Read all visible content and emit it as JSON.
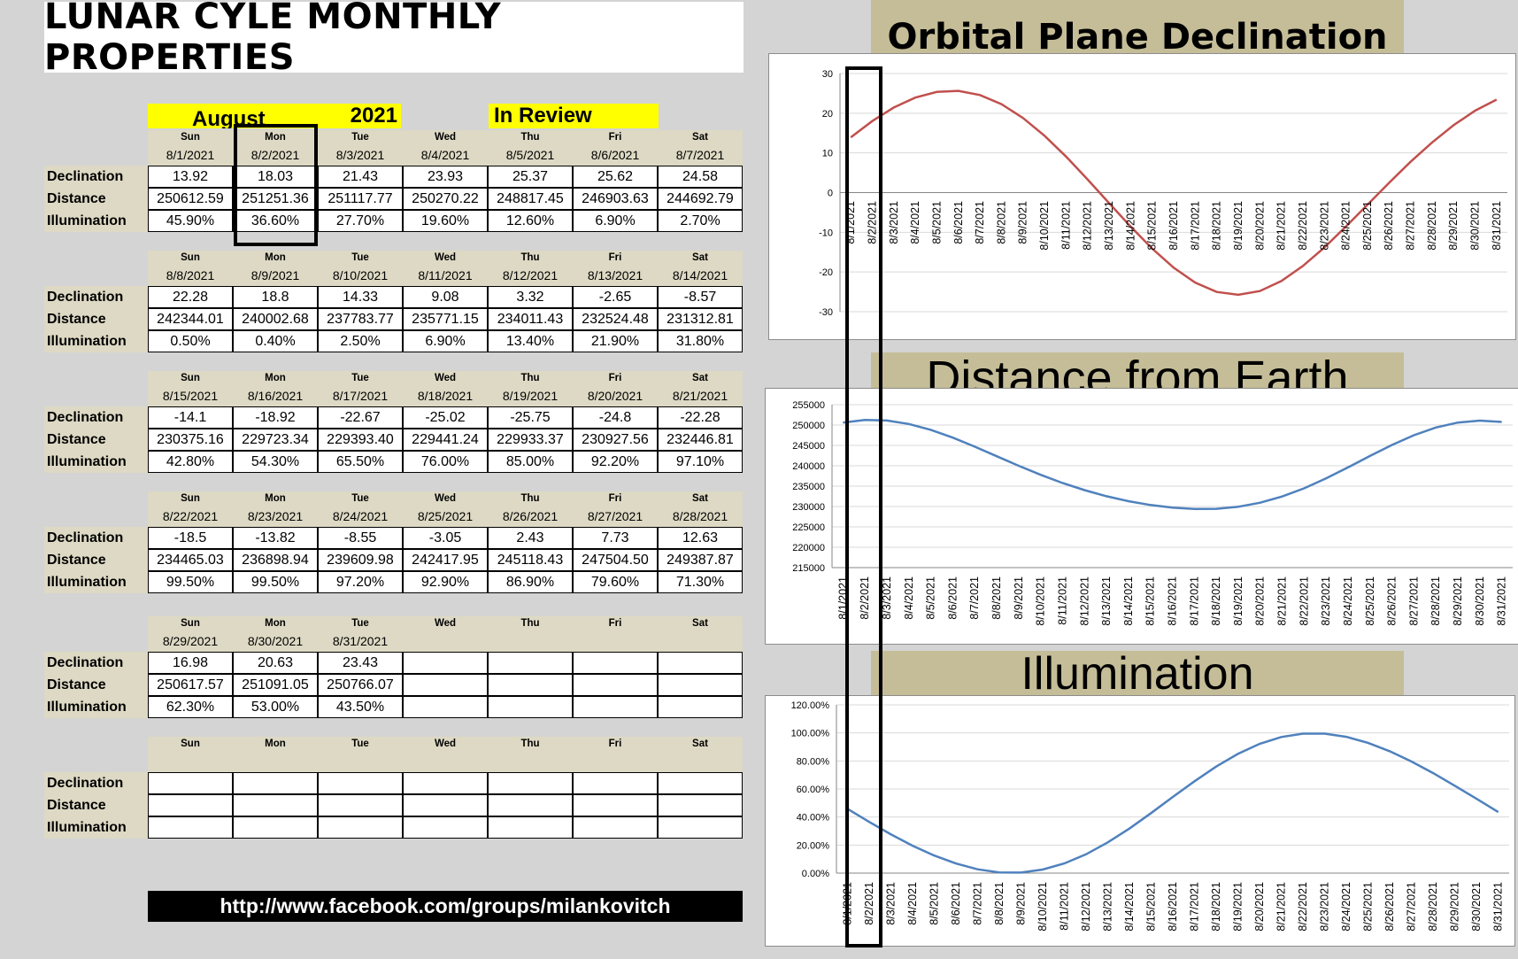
{
  "title": "LUNAR CYLE MONTHLY PROPERTIES",
  "header": {
    "month": "August",
    "year": "2021",
    "review": "In Review"
  },
  "row_labels": [
    "Declination",
    "Distance",
    "Illumination"
  ],
  "weeks": [
    {
      "days": [
        "Sun",
        "Mon",
        "Tue",
        "Wed",
        "Thu",
        "Fri",
        "Sat"
      ],
      "dates": [
        "8/1/2021",
        "8/2/2021",
        "8/3/2021",
        "8/4/2021",
        "8/5/2021",
        "8/6/2021",
        "8/7/2021"
      ],
      "declination": [
        "13.92",
        "18.03",
        "21.43",
        "23.93",
        "25.37",
        "25.62",
        "24.58"
      ],
      "distance": [
        "250612.59",
        "251251.36",
        "251117.77",
        "250270.22",
        "248817.45",
        "246903.63",
        "244692.79"
      ],
      "illumination": [
        "45.90%",
        "36.60%",
        "27.70%",
        "19.60%",
        "12.60%",
        "6.90%",
        "2.70%"
      ]
    },
    {
      "days": [
        "Sun",
        "Mon",
        "Tue",
        "Wed",
        "Thu",
        "Fri",
        "Sat"
      ],
      "dates": [
        "8/8/2021",
        "8/9/2021",
        "8/10/2021",
        "8/11/2021",
        "8/12/2021",
        "8/13/2021",
        "8/14/2021"
      ],
      "declination": [
        "22.28",
        "18.8",
        "14.33",
        "9.08",
        "3.32",
        "-2.65",
        "-8.57"
      ],
      "distance": [
        "242344.01",
        "240002.68",
        "237783.77",
        "235771.15",
        "234011.43",
        "232524.48",
        "231312.81"
      ],
      "illumination": [
        "0.50%",
        "0.40%",
        "2.50%",
        "6.90%",
        "13.40%",
        "21.90%",
        "31.80%"
      ]
    },
    {
      "days": [
        "Sun",
        "Mon",
        "Tue",
        "Wed",
        "Thu",
        "Fri",
        "Sat"
      ],
      "dates": [
        "8/15/2021",
        "8/16/2021",
        "8/17/2021",
        "8/18/2021",
        "8/19/2021",
        "8/20/2021",
        "8/21/2021"
      ],
      "declination": [
        "-14.1",
        "-18.92",
        "-22.67",
        "-25.02",
        "-25.75",
        "-24.8",
        "-22.28"
      ],
      "distance": [
        "230375.16",
        "229723.34",
        "229393.40",
        "229441.24",
        "229933.37",
        "230927.56",
        "232446.81"
      ],
      "illumination": [
        "42.80%",
        "54.30%",
        "65.50%",
        "76.00%",
        "85.00%",
        "92.20%",
        "97.10%"
      ]
    },
    {
      "days": [
        "Sun",
        "Mon",
        "Tue",
        "Wed",
        "Thu",
        "Fri",
        "Sat"
      ],
      "dates": [
        "8/22/2021",
        "8/23/2021",
        "8/24/2021",
        "8/25/2021",
        "8/26/2021",
        "8/27/2021",
        "8/28/2021"
      ],
      "declination": [
        "-18.5",
        "-13.82",
        "-8.55",
        "-3.05",
        "2.43",
        "7.73",
        "12.63"
      ],
      "distance": [
        "234465.03",
        "236898.94",
        "239609.98",
        "242417.95",
        "245118.43",
        "247504.50",
        "249387.87"
      ],
      "illumination": [
        "99.50%",
        "99.50%",
        "97.20%",
        "92.90%",
        "86.90%",
        "79.60%",
        "71.30%"
      ]
    },
    {
      "days": [
        "Sun",
        "Mon",
        "Tue",
        "Wed",
        "Thu",
        "Fri",
        "Sat"
      ],
      "dates": [
        "8/29/2021",
        "8/30/2021",
        "8/31/2021",
        "",
        "",
        "",
        ""
      ],
      "declination": [
        "16.98",
        "20.63",
        "23.43",
        "",
        "",
        "",
        ""
      ],
      "distance": [
        "250617.57",
        "251091.05",
        "250766.07",
        "",
        "",
        "",
        ""
      ],
      "illumination": [
        "62.30%",
        "53.00%",
        "43.50%",
        "",
        "",
        "",
        ""
      ]
    },
    {
      "days": [
        "Sun",
        "Mon",
        "Tue",
        "Wed",
        "Thu",
        "Fri",
        "Sat"
      ],
      "dates": [
        "",
        "",
        "",
        "",
        "",
        "",
        ""
      ],
      "declination": [
        "",
        "",
        "",
        "",
        "",
        "",
        ""
      ],
      "distance": [
        "",
        "",
        "",
        "",
        "",
        "",
        ""
      ],
      "illumination": [
        "",
        "",
        "",
        "",
        "",
        "",
        ""
      ]
    }
  ],
  "footer_url": "http://www.facebook.com/groups/milankovitch",
  "chart_data": [
    {
      "type": "line",
      "title": "Orbital Plane Declination",
      "color": "#c0504d",
      "x": [
        "8/1/2021",
        "8/2/2021",
        "8/3/2021",
        "8/4/2021",
        "8/5/2021",
        "8/6/2021",
        "8/7/2021",
        "8/8/2021",
        "8/9/2021",
        "8/10/2021",
        "8/11/2021",
        "8/12/2021",
        "8/13/2021",
        "8/14/2021",
        "8/15/2021",
        "8/16/2021",
        "8/17/2021",
        "8/18/2021",
        "8/19/2021",
        "8/20/2021",
        "8/21/2021",
        "8/22/2021",
        "8/23/2021",
        "8/24/2021",
        "8/25/2021",
        "8/26/2021",
        "8/27/2021",
        "8/28/2021",
        "8/29/2021",
        "8/30/2021",
        "8/31/2021"
      ],
      "y": [
        13.92,
        18.03,
        21.43,
        23.93,
        25.37,
        25.62,
        24.58,
        22.28,
        18.8,
        14.33,
        9.08,
        3.32,
        -2.65,
        -8.57,
        -14.1,
        -18.92,
        -22.67,
        -25.02,
        -25.75,
        -24.8,
        -22.28,
        -18.5,
        -13.82,
        -8.55,
        -3.05,
        2.43,
        7.73,
        12.63,
        16.98,
        20.63,
        23.43
      ],
      "ylim": [
        -30,
        30
      ],
      "yticks": [
        "30",
        "20",
        "10",
        "0",
        "-10",
        "-20",
        "-30"
      ],
      "grid": true
    },
    {
      "type": "line",
      "title": "Distance from Earth",
      "color": "#4f81bd",
      "x": [
        "8/1/2021",
        "8/2/2021",
        "8/3/2021",
        "8/4/2021",
        "8/5/2021",
        "8/6/2021",
        "8/7/2021",
        "8/8/2021",
        "8/9/2021",
        "8/10/2021",
        "8/11/2021",
        "8/12/2021",
        "8/13/2021",
        "8/14/2021",
        "8/15/2021",
        "8/16/2021",
        "8/17/2021",
        "8/18/2021",
        "8/19/2021",
        "8/20/2021",
        "8/21/2021",
        "8/22/2021",
        "8/23/2021",
        "8/24/2021",
        "8/25/2021",
        "8/26/2021",
        "8/27/2021",
        "8/28/2021",
        "8/29/2021",
        "8/30/2021",
        "8/31/2021"
      ],
      "y": [
        250612.59,
        251251.36,
        251117.77,
        250270.22,
        248817.45,
        246903.63,
        244692.79,
        242344.01,
        240002.68,
        237783.77,
        235771.15,
        234011.43,
        232524.48,
        231312.81,
        230375.16,
        229723.34,
        229393.4,
        229441.24,
        229933.37,
        230927.56,
        232446.81,
        234465.03,
        236898.94,
        239609.98,
        242417.95,
        245118.43,
        247504.5,
        249387.87,
        250617.57,
        251091.05,
        250766.07
      ],
      "ylim": [
        215000,
        255000
      ],
      "yticks": [
        "255000",
        "250000",
        "245000",
        "240000",
        "235000",
        "230000",
        "225000",
        "220000",
        "215000"
      ],
      "grid": true
    },
    {
      "type": "line",
      "title": "Illumination",
      "color": "#4f81bd",
      "x": [
        "8/1/2021",
        "8/2/2021",
        "8/3/2021",
        "8/4/2021",
        "8/5/2021",
        "8/6/2021",
        "8/7/2021",
        "8/8/2021",
        "8/9/2021",
        "8/10/2021",
        "8/11/2021",
        "8/12/2021",
        "8/13/2021",
        "8/14/2021",
        "8/15/2021",
        "8/16/2021",
        "8/17/2021",
        "8/18/2021",
        "8/19/2021",
        "8/20/2021",
        "8/21/2021",
        "8/22/2021",
        "8/23/2021",
        "8/24/2021",
        "8/25/2021",
        "8/26/2021",
        "8/27/2021",
        "8/28/2021",
        "8/29/2021",
        "8/30/2021",
        "8/31/2021"
      ],
      "y": [
        45.9,
        36.6,
        27.7,
        19.6,
        12.6,
        6.9,
        2.7,
        0.5,
        0.4,
        2.5,
        6.9,
        13.4,
        21.9,
        31.8,
        42.8,
        54.3,
        65.5,
        76.0,
        85.0,
        92.2,
        97.1,
        99.5,
        99.5,
        97.2,
        92.9,
        86.9,
        79.6,
        71.3,
        62.3,
        53.0,
        43.5
      ],
      "ylim": [
        0,
        120
      ],
      "yticks": [
        "120.00%",
        "100.00%",
        "80.00%",
        "60.00%",
        "40.00%",
        "20.00%",
        "0.00%"
      ],
      "grid": true
    }
  ]
}
